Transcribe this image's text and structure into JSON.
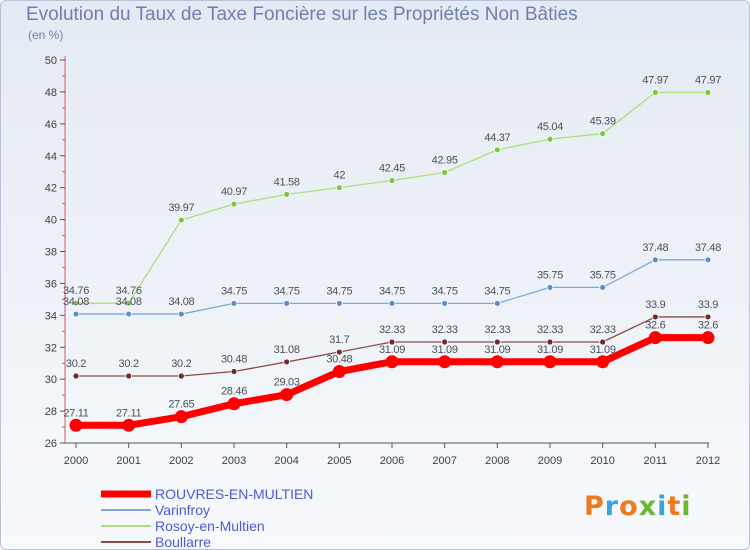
{
  "title": "Evolution du Taux de Taxe Foncière sur les Propriétés Non Bâties",
  "unit_label": "(en %)",
  "logo": {
    "text": "Proxiti",
    "colors": [
      "#f07a1a",
      "#3aa3dc",
      "#f07a1a",
      "#6ab82e",
      "#3aa3dc",
      "#f07a1a",
      "#6ab82e"
    ]
  },
  "chart_data": {
    "type": "line",
    "title": "Evolution du Taux de Taxe Foncière sur les Propriétés Non Bâties",
    "ylabel": "(en %)",
    "xlabel": "",
    "x": [
      "2000",
      "2001",
      "2002",
      "2003",
      "2004",
      "2005",
      "2006",
      "2007",
      "2008",
      "2009",
      "2010",
      "2011",
      "2012"
    ],
    "ylim": [
      26,
      50
    ],
    "yticks": [
      26,
      28,
      30,
      32,
      34,
      36,
      38,
      40,
      42,
      44,
      46,
      48,
      50
    ],
    "grid": false,
    "legend": "bottom-left",
    "series": [
      {
        "name": "ROUVRES-EN-MULTIEN",
        "color": "#ff0000",
        "marker": "#ff0000",
        "values": [
          27.11,
          27.11,
          27.65,
          28.46,
          29.03,
          30.48,
          31.09,
          31.09,
          31.09,
          31.09,
          31.09,
          32.6,
          32.6
        ],
        "labels": [
          "27.11",
          "27.11",
          "27.65",
          "28.46",
          "29.03",
          "30.48",
          "31.09",
          "31.09",
          "31.09",
          "31.09",
          "31.09",
          "32.6",
          "32.6"
        ]
      },
      {
        "name": "Varinfroy",
        "color": "#7fa6d6",
        "marker": "#5b8fcf",
        "values": [
          34.08,
          34.08,
          34.08,
          34.75,
          34.75,
          34.75,
          34.75,
          34.75,
          34.75,
          35.75,
          35.75,
          37.48,
          37.48
        ],
        "labels": [
          "34.08",
          "34.08",
          "34.08",
          "34.75",
          "34.75",
          "34.75",
          "34.75",
          "34.75",
          "34.75",
          "35.75",
          "35.75",
          "37.48",
          "37.48"
        ]
      },
      {
        "name": "Rosoy-en-Multien",
        "color": "#a8e07a",
        "marker": "#7cc63e",
        "values": [
          34.76,
          34.76,
          39.97,
          40.97,
          41.58,
          42,
          42.45,
          42.95,
          44.37,
          45.04,
          45.39,
          47.97,
          47.97
        ],
        "labels": [
          "34.76",
          "34.76",
          "39.97",
          "40.97",
          "41.58",
          "42",
          "42.45",
          "42.95",
          "44.37",
          "45.04",
          "45.39",
          "47.97",
          "47.97"
        ]
      },
      {
        "name": "Boullarre",
        "color": "#8a4a4a",
        "marker": "#6e2a2a",
        "values": [
          30.2,
          30.2,
          30.2,
          30.48,
          31.08,
          31.7,
          32.33,
          32.33,
          32.33,
          32.33,
          32.33,
          33.9,
          33.9
        ],
        "labels": [
          "30.2",
          "30.2",
          "30.2",
          "30.48",
          "31.08",
          "31.7",
          "32.33",
          "32.33",
          "32.33",
          "32.33",
          "32.33",
          "33.9",
          "33.9"
        ]
      }
    ]
  }
}
